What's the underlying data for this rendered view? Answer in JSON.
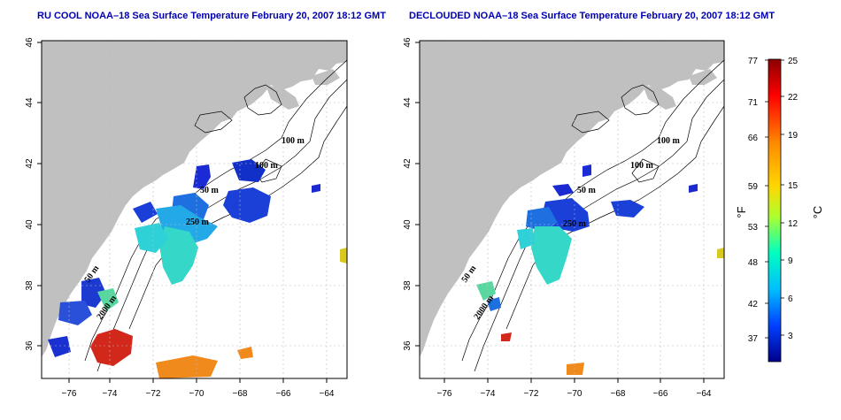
{
  "panels": [
    {
      "title": "RU COOL NOAA–18 Sea Surface Temperature February 20, 2007 18:12 GMT",
      "contour_labels": [
        "100 m",
        "100 m",
        "50 m",
        "250 m",
        "50 m",
        "2000 m"
      ]
    },
    {
      "title": "DECLOUDED NOAA–18 Sea Surface Temperature February 20, 2007 18:12 GMT",
      "contour_labels": [
        "100 m",
        "100 m",
        "50 m",
        "250 m",
        "50 m",
        "2000 m"
      ]
    }
  ],
  "axes": {
    "lat_ticks": [
      "36",
      "38",
      "40",
      "42",
      "44",
      "46"
    ],
    "lon_ticks": [
      "−76",
      "−74",
      "−72",
      "−70",
      "−68",
      "−66",
      "−64"
    ]
  },
  "colorbar": {
    "f_ticks": [
      "77",
      "71",
      "66",
      "59",
      "53",
      "48",
      "42",
      "37"
    ],
    "c_ticks": [
      "25",
      "22",
      "19",
      "15",
      "12",
      "9",
      "6",
      "3"
    ],
    "f_label": "°F",
    "c_label": "°C",
    "colors": [
      "#8b0000",
      "#ff0000",
      "#ff8c00",
      "#ffd700",
      "#adff2f",
      "#00ffc0",
      "#00bfff",
      "#0040ff",
      "#00008b"
    ]
  },
  "colors": {
    "land": "#c0c0c0",
    "water": "#ffffff",
    "title": "#0000b0"
  }
}
